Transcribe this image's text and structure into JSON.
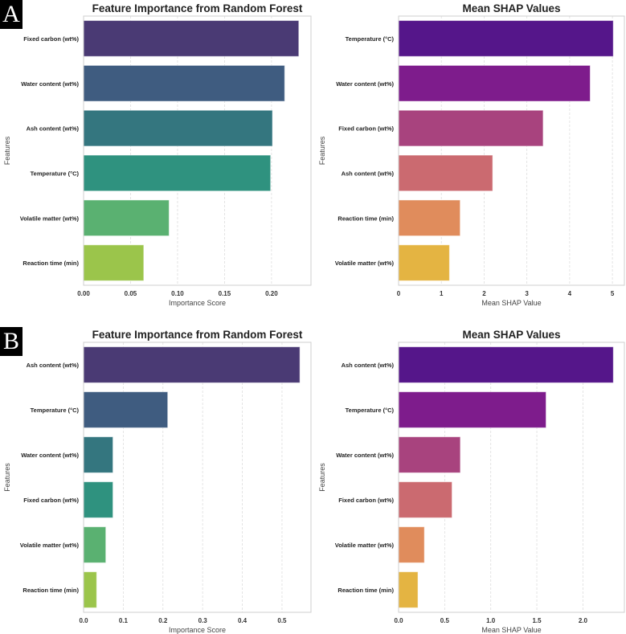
{
  "panel_labels": [
    "A",
    "B"
  ],
  "colors": {
    "viridis": [
      "#4a3a74",
      "#3f5c80",
      "#34767f",
      "#2f927f",
      "#5ab171",
      "#9bc54b"
    ],
    "plasma": [
      "#55168a",
      "#7e1c8c",
      "#a8437e",
      "#cb6a70",
      "#e08c5c",
      "#e4b442"
    ]
  },
  "chart_data": [
    {
      "type": "bar",
      "orientation": "horizontal",
      "panel": "A",
      "title": "Feature Importance from Random Forest",
      "xlabel": "Importance Score",
      "ylabel": "Features",
      "categories": [
        "Fixed carbon (wt%)",
        "Water content (wt%)",
        "Ash content (wt%)",
        "Temperature (°C)",
        "Volatile matter (wt%)",
        "Reaction time (min)"
      ],
      "values": [
        0.229,
        0.214,
        0.201,
        0.199,
        0.091,
        0.064
      ],
      "xlim": [
        0,
        0.242
      ],
      "xticks": [
        0,
        0.05,
        0.1,
        0.15,
        0.2
      ],
      "xtick_labels": [
        "0.00",
        "0.05",
        "0.10",
        "0.15",
        "0.20"
      ],
      "palette": "viridis",
      "grid": "x dashed"
    },
    {
      "type": "bar",
      "orientation": "horizontal",
      "panel": "A",
      "title": "Mean SHAP Values",
      "xlabel": "Mean SHAP Value",
      "ylabel": "Features",
      "categories": [
        "Temperature (°C)",
        "Water content (wt%)",
        "Fixed carbon (wt%)",
        "Ash content (wt%)",
        "Reaction time (min)",
        "Volatile matter (wt%)"
      ],
      "values": [
        5.02,
        4.48,
        3.38,
        2.2,
        1.44,
        1.19
      ],
      "xlim": [
        0,
        5.28
      ],
      "xticks": [
        0,
        1,
        2,
        3,
        4,
        5
      ],
      "xtick_labels": [
        "0",
        "1",
        "2",
        "3",
        "4",
        "5"
      ],
      "palette": "plasma",
      "grid": "x dashed"
    },
    {
      "type": "bar",
      "orientation": "horizontal",
      "panel": "B",
      "title": "Feature Importance from Random Forest",
      "xlabel": "Importance Score",
      "ylabel": "Features",
      "categories": [
        "Ash content (wt%)",
        "Temperature (°C)",
        "Water content (wt%)",
        "Fixed carbon (wt%)",
        "Volatile matter (wt%)",
        "Reaction time (min)"
      ],
      "values": [
        0.545,
        0.212,
        0.074,
        0.074,
        0.056,
        0.033
      ],
      "xlim": [
        0,
        0.573
      ],
      "xticks": [
        0,
        0.1,
        0.2,
        0.3,
        0.4,
        0.5
      ],
      "xtick_labels": [
        "0.0",
        "0.1",
        "0.2",
        "0.3",
        "0.4",
        "0.5"
      ],
      "palette": "viridis",
      "grid": "x dashed"
    },
    {
      "type": "bar",
      "orientation": "horizontal",
      "panel": "B",
      "title": "Mean SHAP Values",
      "xlabel": "Mean SHAP Value",
      "ylabel": "Features",
      "categories": [
        "Ash content (wt%)",
        "Temperature (°C)",
        "Water content (wt%)",
        "Fixed carbon (wt%)",
        "Volatile matter (wt%)",
        "Reaction time (min)"
      ],
      "values": [
        2.33,
        1.6,
        0.67,
        0.58,
        0.28,
        0.21
      ],
      "xlim": [
        0,
        2.45
      ],
      "xticks": [
        0,
        0.5,
        1.0,
        1.5,
        2.0
      ],
      "xtick_labels": [
        "0.0",
        "0.5",
        "1.0",
        "1.5",
        "2.0"
      ],
      "palette": "plasma",
      "grid": "x dashed"
    }
  ]
}
